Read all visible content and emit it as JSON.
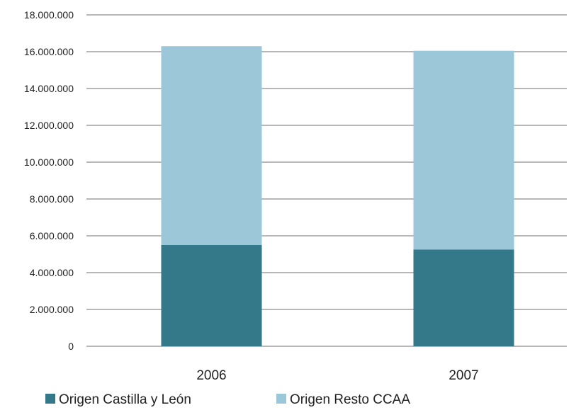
{
  "chart_data": {
    "type": "bar",
    "stacked": true,
    "categories": [
      "2006",
      "2007"
    ],
    "series": [
      {
        "name": "Origen Castilla y León",
        "values": [
          5500000,
          5250000
        ],
        "color": "#33798a"
      },
      {
        "name": "Origen Resto CCAA",
        "values": [
          10800000,
          10800000
        ],
        "color": "#9cc7d8"
      }
    ],
    "ylim": [
      0,
      18000000
    ],
    "yticks": [
      0,
      2000000,
      4000000,
      6000000,
      8000000,
      10000000,
      12000000,
      14000000,
      16000000,
      18000000
    ],
    "ytick_labels": [
      "0",
      "2.000.000",
      "4.000.000",
      "6.000.000",
      "8.000.000",
      "10.000.000",
      "12.000.000",
      "14.000.000",
      "16.000.000",
      "18.000.000"
    ],
    "grid": true,
    "legend_position": "bottom-left",
    "gridline_color": "#8c8c8c"
  }
}
